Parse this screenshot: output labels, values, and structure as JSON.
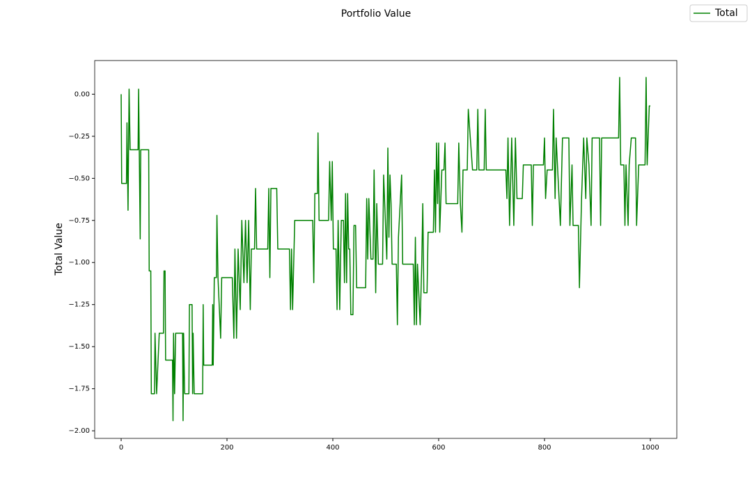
{
  "chart_data": {
    "type": "line",
    "title": "Portfolio Value",
    "y_label": "Total Value",
    "xlim": [
      -50,
      1050
    ],
    "ylim": [
      -2.045,
      0.2
    ],
    "xticks": [
      0,
      200,
      400,
      600,
      800,
      1000
    ],
    "yticks": [
      {
        "value": 0,
        "label": "0.00"
      },
      {
        "value": -0.25,
        "label": "−0.25"
      },
      {
        "value": -0.5,
        "label": "−0.50"
      },
      {
        "value": -0.75,
        "label": "−0.75"
      },
      {
        "value": -1,
        "label": "−1.00"
      },
      {
        "value": -1.25,
        "label": "−1.25"
      },
      {
        "value": -1.5,
        "label": "−1.50"
      },
      {
        "value": -1.75,
        "label": "−1.75"
      },
      {
        "value": -2,
        "label": "−2.00"
      }
    ],
    "grid": false,
    "legend": "upper right",
    "x": [
      0,
      1,
      10,
      11,
      13,
      15,
      17,
      32,
      33,
      36,
      37,
      52,
      53,
      56,
      57,
      63,
      64,
      67,
      72,
      80,
      81,
      83,
      84,
      97,
      98,
      99,
      101,
      103,
      116,
      117,
      118,
      120,
      128,
      129,
      134,
      135,
      136,
      138,
      154,
      155,
      156,
      172,
      173,
      174,
      176,
      180,
      181,
      183,
      188,
      190,
      210,
      213,
      215,
      218,
      221,
      225,
      228,
      232,
      235,
      238,
      241,
      244,
      246,
      252,
      254,
      256,
      277,
      279,
      281,
      283,
      294,
      296,
      318,
      320,
      322,
      324,
      328,
      362,
      364,
      366,
      371,
      372,
      374,
      392,
      394,
      397,
      399,
      401,
      406,
      408,
      410,
      413,
      416,
      420,
      422,
      424,
      426,
      428,
      430,
      432,
      434,
      438,
      440,
      443,
      445,
      462,
      464,
      466,
      468,
      472,
      476,
      478,
      481,
      483,
      486,
      494,
      496,
      502,
      504,
      506,
      508,
      510,
      512,
      520,
      522,
      524,
      530,
      532,
      552,
      554,
      556,
      558,
      560,
      565,
      568,
      570,
      572,
      578,
      580,
      590,
      592,
      594,
      596,
      598,
      600,
      602,
      606,
      610,
      612,
      614,
      636,
      638,
      641,
      644,
      646,
      654,
      656,
      664,
      672,
      674,
      676,
      686,
      688,
      690,
      727,
      729,
      731,
      734,
      738,
      742,
      745,
      748,
      758,
      760,
      775,
      777,
      779,
      798,
      800,
      802,
      805,
      815,
      817,
      820,
      822,
      830,
      834,
      846,
      848,
      852,
      854,
      864,
      866,
      870,
      874,
      878,
      880,
      884,
      888,
      890,
      904,
      906,
      908,
      940,
      942,
      944,
      950,
      952,
      954,
      958,
      960,
      964,
      972,
      974,
      978,
      990,
      992,
      994,
      998,
      1000
    ],
    "series": [
      {
        "name": "Total",
        "color": "#008000",
        "values": [
          0,
          -0.53,
          -0.53,
          -0.17,
          -0.69,
          0.03,
          -0.33,
          -0.33,
          0.03,
          -0.86,
          -0.33,
          -0.33,
          -1.05,
          -1.05,
          -1.78,
          -1.78,
          -1.42,
          -1.78,
          -1.42,
          -1.42,
          -1.05,
          -1.05,
          -1.58,
          -1.58,
          -1.94,
          -1.42,
          -1.78,
          -1.42,
          -1.42,
          -1.94,
          -1.42,
          -1.78,
          -1.78,
          -1.25,
          -1.25,
          -1.78,
          -1.42,
          -1.78,
          -1.78,
          -1.25,
          -1.61,
          -1.61,
          -1.25,
          -1.61,
          -1.09,
          -1.09,
          -0.72,
          -1.09,
          -1.45,
          -1.09,
          -1.09,
          -1.45,
          -0.92,
          -1.45,
          -0.92,
          -1.28,
          -0.75,
          -1.12,
          -0.75,
          -1.12,
          -0.75,
          -1.28,
          -0.92,
          -0.92,
          -0.56,
          -0.92,
          -0.92,
          -0.56,
          -1.09,
          -0.56,
          -0.56,
          -0.92,
          -0.92,
          -1.28,
          -0.92,
          -1.28,
          -0.75,
          -0.75,
          -1.12,
          -0.59,
          -0.59,
          -0.23,
          -0.75,
          -0.75,
          -0.4,
          -0.75,
          -0.4,
          -0.92,
          -0.92,
          -1.28,
          -0.75,
          -1.28,
          -0.75,
          -0.75,
          -1.12,
          -0.59,
          -1.12,
          -0.59,
          -0.92,
          -0.92,
          -1.31,
          -1.31,
          -0.78,
          -0.78,
          -1.15,
          -1.15,
          -0.62,
          -0.98,
          -0.62,
          -0.98,
          -0.98,
          -0.45,
          -1.18,
          -0.65,
          -1.01,
          -1.01,
          -0.48,
          -0.98,
          -0.32,
          -0.85,
          -0.48,
          -0.65,
          -1.01,
          -1.01,
          -1.37,
          -0.85,
          -0.48,
          -1.01,
          -1.01,
          -1.37,
          -0.85,
          -1.37,
          -1.01,
          -1.37,
          -1.01,
          -0.65,
          -1.18,
          -1.18,
          -0.82,
          -0.82,
          -0.45,
          -0.82,
          -0.29,
          -0.65,
          -0.29,
          -0.82,
          -0.45,
          -0.45,
          -0.29,
          -0.65,
          -0.65,
          -0.29,
          -0.65,
          -0.82,
          -0.45,
          -0.45,
          -0.09,
          -0.45,
          -0.45,
          -0.09,
          -0.45,
          -0.45,
          -0.09,
          -0.45,
          -0.45,
          -0.62,
          -0.26,
          -0.78,
          -0.26,
          -0.78,
          -0.26,
          -0.62,
          -0.62,
          -0.42,
          -0.42,
          -0.78,
          -0.42,
          -0.42,
          -0.26,
          -0.62,
          -0.45,
          -0.45,
          -0.09,
          -0.62,
          -0.26,
          -0.78,
          -0.26,
          -0.26,
          -0.78,
          -0.42,
          -0.78,
          -0.78,
          -1.15,
          -0.62,
          -0.26,
          -0.62,
          -0.26,
          -0.42,
          -0.78,
          -0.26,
          -0.26,
          -0.78,
          -0.26,
          -0.26,
          0.1,
          -0.42,
          -0.42,
          -0.78,
          -0.42,
          -0.78,
          -0.42,
          -0.26,
          -0.26,
          -0.78,
          -0.42,
          -0.42,
          0.1,
          -0.42,
          -0.07,
          -0.07
        ]
      }
    ]
  }
}
